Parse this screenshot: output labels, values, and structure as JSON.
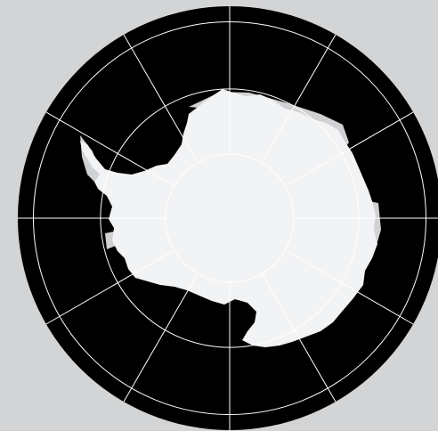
{
  "map": {
    "projection": "south-polar-stereographic",
    "region": "antarctica",
    "meridian_interval_deg": 30,
    "parallels_deg": [
      -80,
      -70,
      -60
    ],
    "colors": {
      "background": "#d3d4d5",
      "ocean": "#000000",
      "land": "#f2f3f5",
      "ice_shelf": "#d0d1d3",
      "graticule": "#ffffff"
    }
  }
}
